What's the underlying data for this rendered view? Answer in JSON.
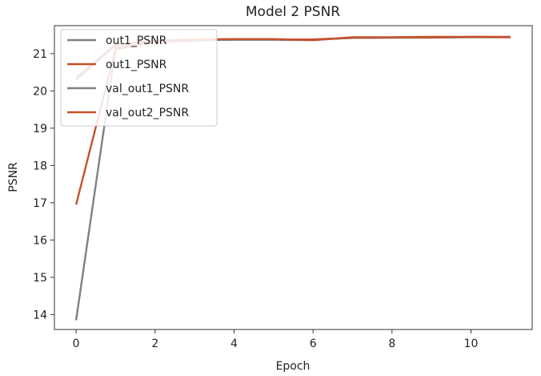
{
  "chart_data": {
    "type": "line",
    "title": "Model 2 PSNR",
    "xlabel": "Epoch",
    "ylabel": "PSNR",
    "xlim": [
      -0.55,
      11.55
    ],
    "ylim": [
      13.6,
      21.75
    ],
    "xticks": [
      0,
      2,
      4,
      6,
      8,
      10
    ],
    "yticks": [
      14,
      15,
      16,
      17,
      18,
      19,
      20,
      21
    ],
    "grid": false,
    "legend_position": "top-left",
    "x": [
      0,
      1,
      2,
      3,
      4,
      5,
      6,
      7,
      8,
      9,
      10,
      11
    ],
    "series": [
      {
        "name": "out1_PSNR",
        "color": "#808080",
        "values": [
          13.85,
          21.15,
          21.32,
          21.36,
          21.38,
          21.38,
          21.38,
          21.42,
          21.43,
          21.43,
          21.44,
          21.44
        ]
      },
      {
        "name": "out1_PSNR",
        "color": "#c8502a",
        "values": [
          16.95,
          21.12,
          21.3,
          21.35,
          21.38,
          21.38,
          21.38,
          21.42,
          21.43,
          21.43,
          21.45,
          21.45
        ]
      },
      {
        "name": "val_out1_PSNR",
        "color": "#808080",
        "values": [
          20.3,
          21.22,
          21.32,
          21.36,
          21.37,
          21.37,
          21.36,
          21.43,
          21.43,
          21.44,
          21.44,
          21.44
        ]
      },
      {
        "name": "val_out2_PSNR",
        "color": "#c8502a",
        "values": [
          20.35,
          21.25,
          21.35,
          21.38,
          21.39,
          21.39,
          21.36,
          21.44,
          21.44,
          21.45,
          21.45,
          21.44
        ]
      }
    ]
  }
}
